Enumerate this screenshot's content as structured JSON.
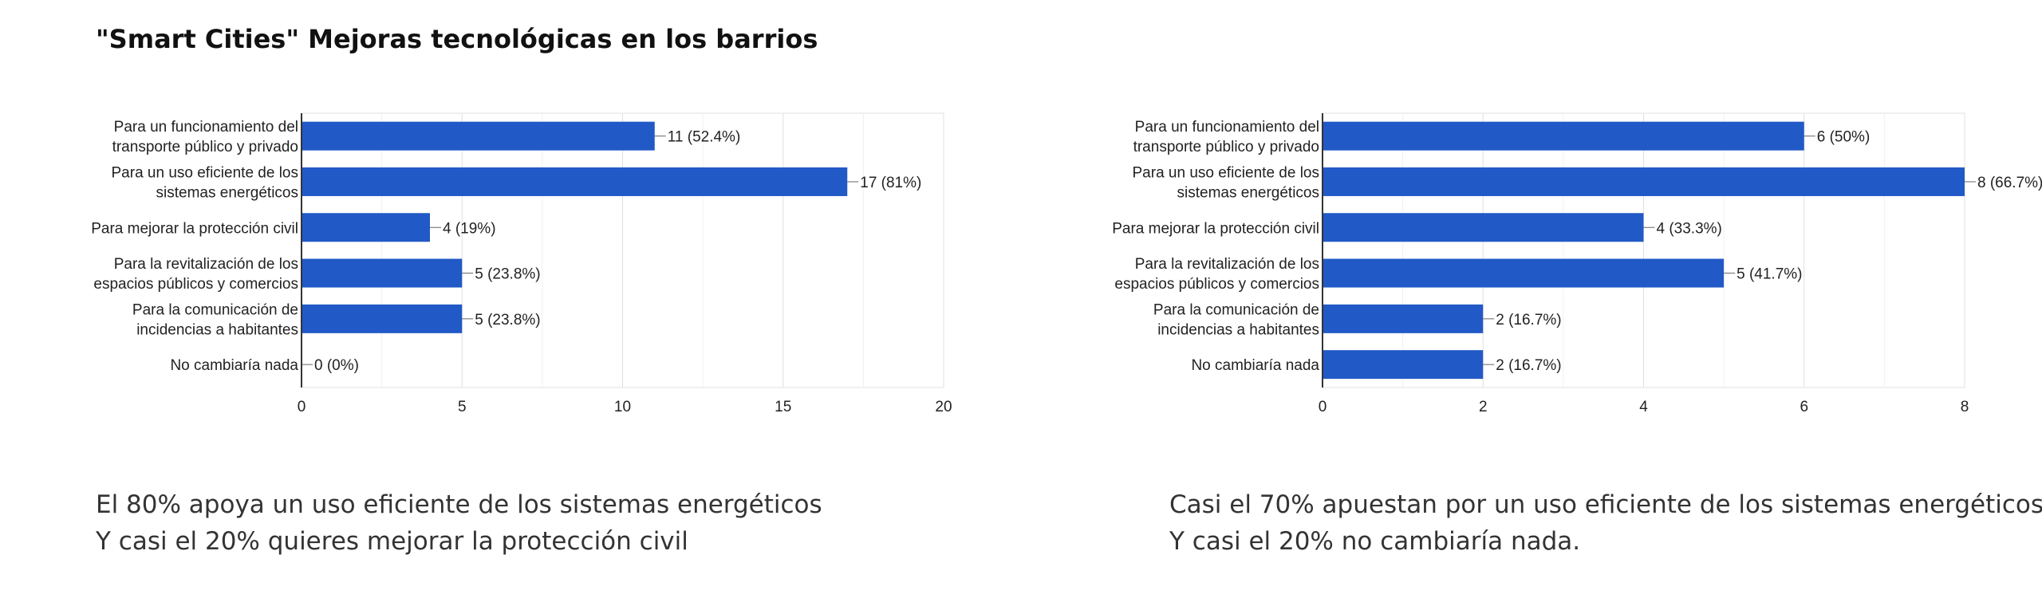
{
  "page": {
    "title": "\"Smart Cities\" Mejoras tecnológicas en los barrios"
  },
  "captions": {
    "left": [
      "El 80% apoya un uso eficiente de los sistemas energéticos",
      "Y casi el 20% quieres mejorar la protección civil"
    ],
    "right": [
      "Casi el 70% apuestan por un uso eficiente de los sistemas energéticos",
      "Y casi el 20% no cambiaría nada."
    ]
  },
  "colors": {
    "bar": "#2159c6",
    "grid": "#e0e0e0",
    "axis": "#333333"
  },
  "chart_data": [
    {
      "type": "bar",
      "orientation": "horizontal",
      "categories": [
        [
          "Para un funcionamiento del",
          "transporte público y privado"
        ],
        [
          "Para un uso eficiente de los",
          "sistemas energéticos"
        ],
        [
          "Para mejorar la protección civil"
        ],
        [
          "Para la revitalización de los",
          "espacios públicos y comercios"
        ],
        [
          "Para la comunicación de",
          "incidencias a habitantes"
        ],
        [
          "No cambiaría nada"
        ]
      ],
      "values": [
        11,
        17,
        4,
        5,
        5,
        0
      ],
      "data_labels": [
        "11 (52.4%)",
        "17 (81%)",
        "4 (19%)",
        "5 (23.8%)",
        "5 (23.8%)",
        "0 (0%)"
      ],
      "xlim": [
        0,
        20
      ],
      "xticks": [
        0,
        5,
        10,
        15,
        20
      ],
      "grid": true
    },
    {
      "type": "bar",
      "orientation": "horizontal",
      "categories": [
        [
          "Para un funcionamiento del",
          "transporte público y privado"
        ],
        [
          "Para un uso eficiente de los",
          "sistemas energéticos"
        ],
        [
          "Para mejorar la protección civil"
        ],
        [
          "Para la revitalización de los",
          "espacios públicos y comercios"
        ],
        [
          "Para la comunicación de",
          "incidencias a habitantes"
        ],
        [
          "No cambiaría nada"
        ]
      ],
      "values": [
        6,
        8,
        4,
        5,
        2,
        2
      ],
      "data_labels": [
        "6 (50%)",
        "8 (66.7%)",
        "4 (33.3%)",
        "5 (41.7%)",
        "2 (16.7%)",
        "2 (16.7%)"
      ],
      "xlim": [
        0,
        8
      ],
      "xticks": [
        0,
        2,
        4,
        6,
        8
      ],
      "grid": true
    }
  ]
}
